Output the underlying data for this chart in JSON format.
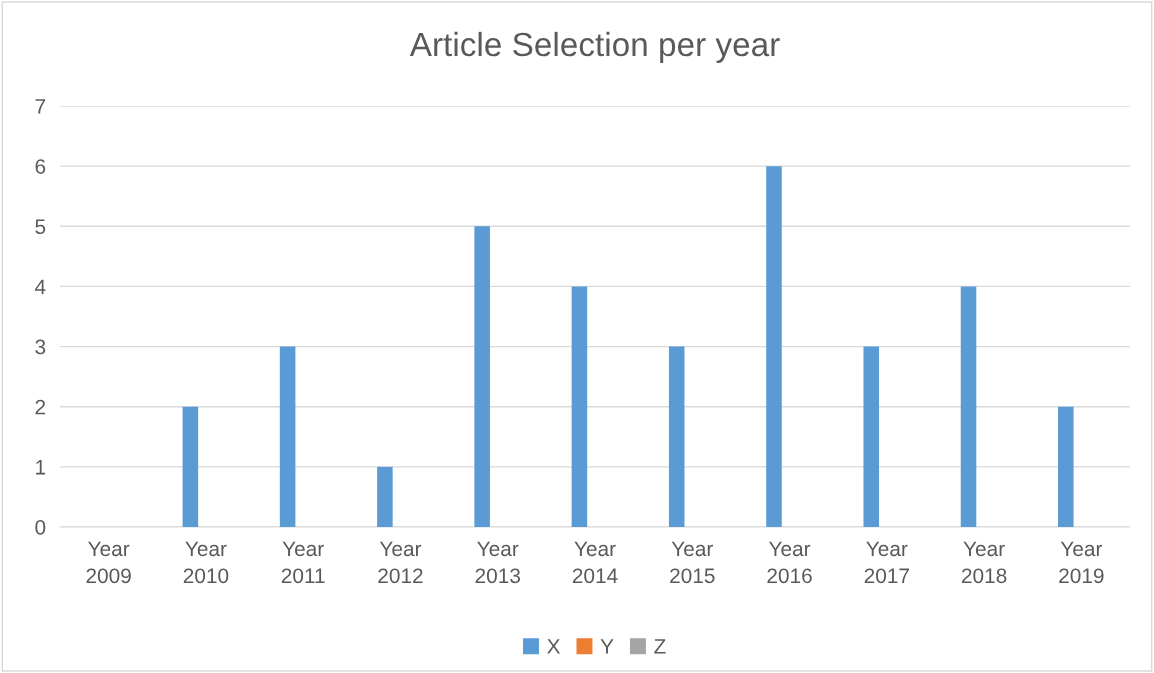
{
  "chart_data": {
    "type": "bar",
    "title": "Article Selection per year",
    "categories": [
      "Year 2009",
      "Year 2010",
      "Year 2011",
      "Year 2012",
      "Year 2013",
      "Year 2014",
      "Year 2015",
      "Year 2016",
      "Year 2017",
      "Year 2018",
      "Year 2019"
    ],
    "series": [
      {
        "name": "X",
        "color": "#5b9bd5",
        "values": [
          0,
          2,
          3,
          1,
          5,
          4,
          3,
          6,
          3,
          4,
          2
        ]
      },
      {
        "name": "Y",
        "color": "#ed7d31",
        "values": [
          0,
          0,
          0,
          0,
          0,
          0,
          0,
          0,
          0,
          0,
          0
        ]
      },
      {
        "name": "Z",
        "color": "#a5a5a5",
        "values": [
          0,
          0,
          0,
          0,
          0,
          0,
          0,
          0,
          0,
          0,
          0
        ]
      }
    ],
    "ylim": [
      0,
      7
    ],
    "yticks": [
      0,
      1,
      2,
      3,
      4,
      5,
      6,
      7
    ],
    "grid": "y",
    "legend": "bottom"
  }
}
